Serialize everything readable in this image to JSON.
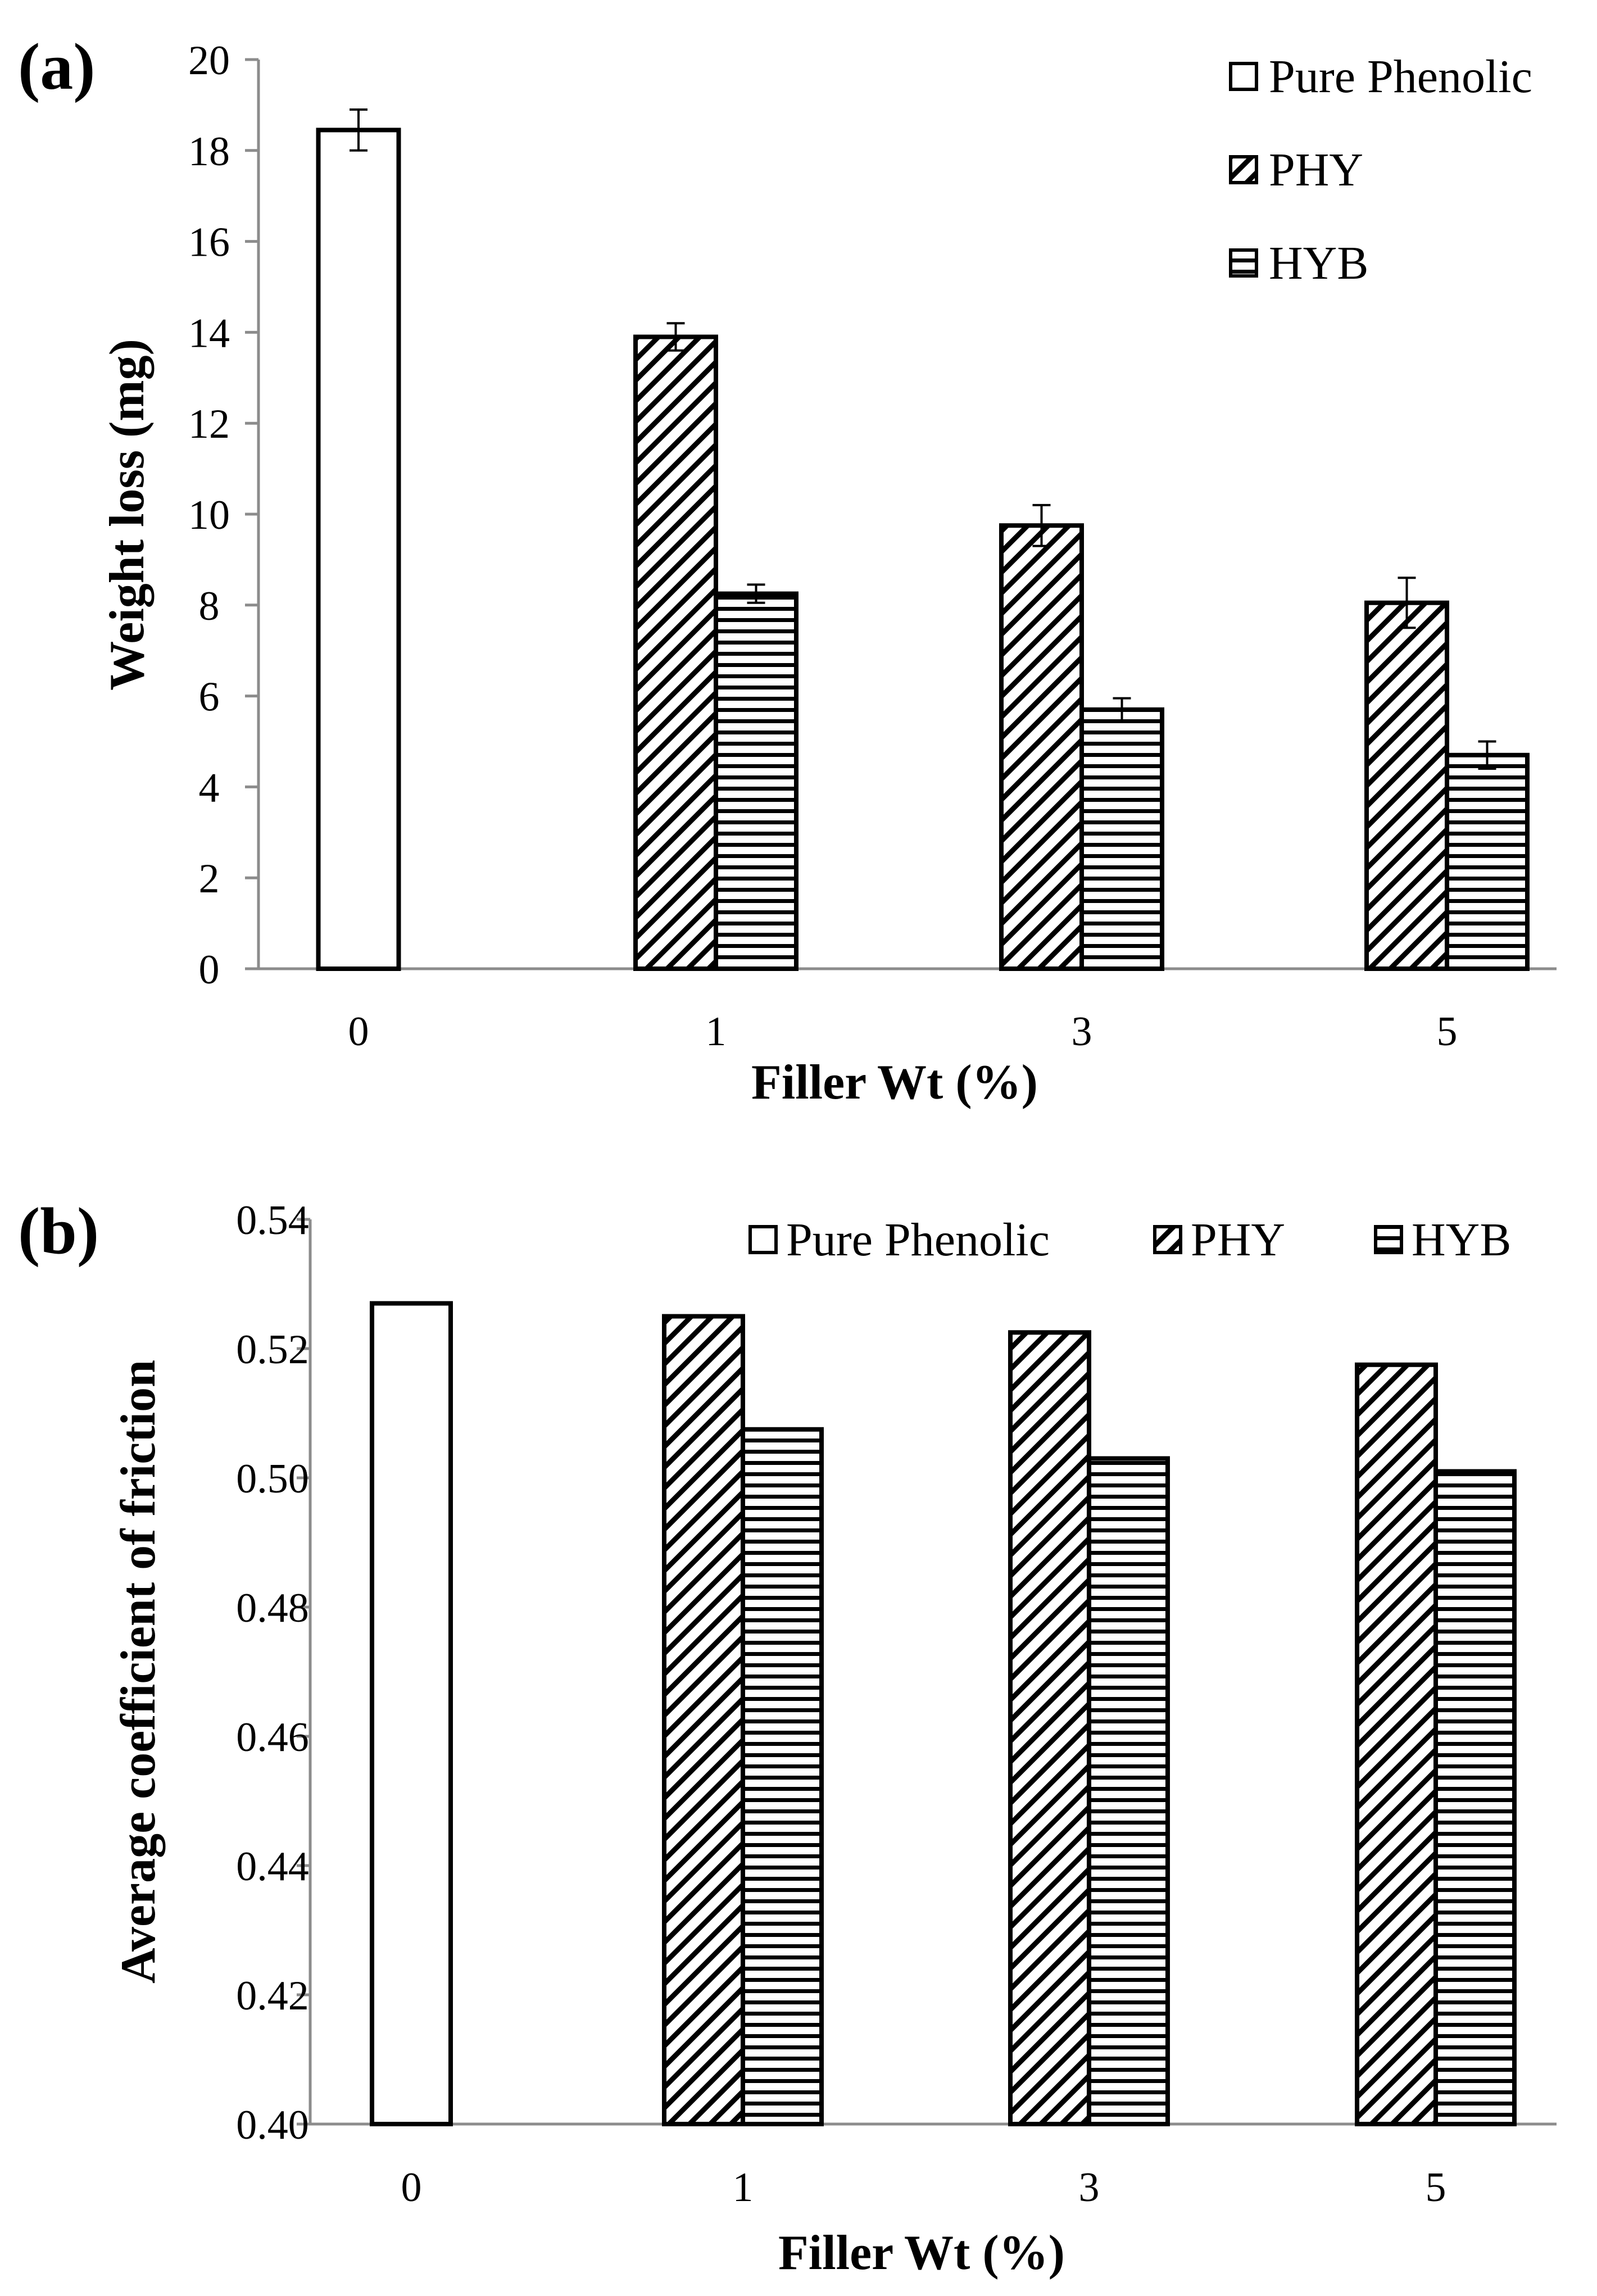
{
  "chart_data": [
    {
      "type": "bar",
      "panel_label": "(a)",
      "xlabel": "Filler Wt (%)",
      "ylabel": "Weight loss (mg)",
      "categories": [
        "0",
        "1",
        "3",
        "5"
      ],
      "ylim": [
        0,
        20
      ],
      "ytick_labels": [
        "0",
        "2",
        "4",
        "6",
        "8",
        "10",
        "12",
        "14",
        "16",
        "18",
        "20"
      ],
      "legend_placement": "top-right",
      "legend_layout": "vertical",
      "series": [
        {
          "name": "Pure Phenolic",
          "pattern": "white",
          "values": [
            18.45,
            null,
            null,
            null
          ],
          "errors": [
            0.45,
            null,
            null,
            null
          ]
        },
        {
          "name": "PHY",
          "pattern": "diagonal",
          "values": [
            null,
            13.9,
            9.75,
            8.05
          ],
          "errors": [
            null,
            0.3,
            0.45,
            0.55
          ]
        },
        {
          "name": "HYB",
          "pattern": "horizontal",
          "values": [
            null,
            8.25,
            5.7,
            4.7
          ],
          "errors": [
            null,
            0.2,
            0.25,
            0.3
          ]
        }
      ]
    },
    {
      "type": "bar",
      "panel_label": "(b)",
      "xlabel": "Filler Wt (%)",
      "ylabel": "Average coefficient of friction",
      "categories": [
        "0",
        "1",
        "3",
        "5"
      ],
      "ylim": [
        0.4,
        0.54
      ],
      "ytick_labels": [
        "0.40",
        "0.42",
        "0.44",
        "0.46",
        "0.48",
        "0.50",
        "0.52",
        "0.54"
      ],
      "legend_placement": "top-right",
      "legend_layout": "horizontal",
      "series": [
        {
          "name": "Pure Phenolic",
          "pattern": "white",
          "values": [
            0.527,
            null,
            null,
            null
          ]
        },
        {
          "name": "PHY",
          "pattern": "diagonal",
          "values": [
            null,
            0.525,
            0.5225,
            0.5175
          ]
        },
        {
          "name": "HYB",
          "pattern": "horizontal",
          "values": [
            null,
            0.5075,
            0.503,
            0.501
          ]
        }
      ]
    }
  ]
}
